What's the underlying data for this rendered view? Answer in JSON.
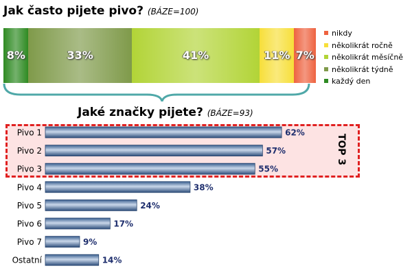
{
  "chart_data": [
    {
      "type": "bar",
      "orientation": "horizontal-stacked",
      "title": "Jak často pijete pivo?",
      "subtitle": "(BÁZE=100)",
      "segments_order": [
        "každý den",
        "několikrát týdně",
        "několikrát měsíčně",
        "několikrát ročně",
        "nikdy"
      ],
      "series": [
        {
          "name": "každý den",
          "value": 8,
          "label": "8%",
          "color": "#2e8a22"
        },
        {
          "name": "několikrát týdně",
          "value": 33,
          "label": "33%",
          "color": "#7f9a4a"
        },
        {
          "name": "několikrát měsíčně",
          "value": 41,
          "label": "41%",
          "color": "#b2d437"
        },
        {
          "name": "několikrát ročně",
          "value": 11,
          "label": "11%",
          "color": "#f7df3a"
        },
        {
          "name": "nikdy",
          "value": 7,
          "label": "7%",
          "color": "#ee6340"
        }
      ],
      "legend": {
        "placement": "right",
        "items": [
          {
            "label": "nikdy",
            "color": "#ee6340"
          },
          {
            "label": "několikrát ročně",
            "color": "#f7df3a"
          },
          {
            "label": "několikrát měsíčně",
            "color": "#b2d437"
          },
          {
            "label": "několikrát týdně",
            "color": "#7f9a4a"
          },
          {
            "label": "každý den",
            "color": "#2e8a22"
          }
        ]
      }
    },
    {
      "type": "bar",
      "orientation": "horizontal",
      "title": "Jaké značky pijete?",
      "subtitle": "(BÁZE=93)",
      "categories": [
        "Pivo 1",
        "Pivo 2",
        "Pivo 3",
        "Pivo 4",
        "Pivo 5",
        "Pivo 6",
        "Pivo 7",
        "Ostatní"
      ],
      "values": [
        62,
        57,
        55,
        38,
        24,
        17,
        9,
        14
      ],
      "value_labels": [
        "62%",
        "57%",
        "55%",
        "38%",
        "24%",
        "17%",
        "9%",
        "14%"
      ],
      "xlim": [
        0,
        100
      ],
      "bar_color": "#4a6fa0",
      "highlight": {
        "label": "TOP 3",
        "count": 3,
        "color": "#e02020"
      }
    }
  ]
}
